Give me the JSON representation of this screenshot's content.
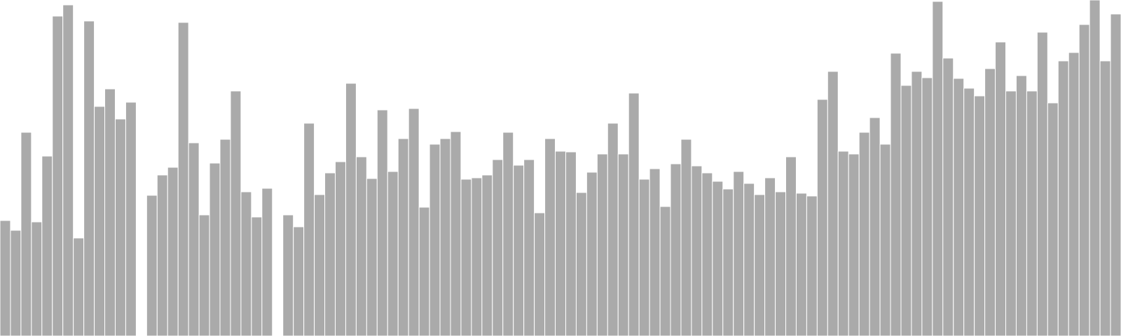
{
  "chart_data": {
    "type": "bar",
    "ylim": [
      0,
      480
    ],
    "grid": false,
    "legend": "none",
    "bar_color": "#aaaaaa",
    "bar_edge_color": "#ffffff",
    "background_color": "#ffffff",
    "values": [
      165,
      151,
      291,
      163,
      257,
      457,
      473,
      140,
      450,
      328,
      353,
      310,
      334,
      null,
      201,
      230,
      241,
      448,
      276,
      173,
      247,
      281,
      350,
      206,
      170,
      211,
      null,
      173,
      156,
      304,
      202,
      233,
      249,
      361,
      256,
      225,
      323,
      235,
      282,
      325,
      184,
      274,
      282,
      292,
      224,
      226,
      230,
      252,
      291,
      244,
      252,
      176,
      282,
      264,
      263,
      205,
      234,
      260,
      304,
      260,
      347,
      224,
      239,
      185,
      246,
      281,
      243,
      233,
      221,
      210,
      235,
      218,
      202,
      226,
      206,
      256,
      204,
      200,
      338,
      378,
      264,
      260,
      291,
      312,
      274,
      404,
      358,
      378,
      369,
      478,
      397,
      368,
      354,
      343,
      382,
      420,
      350,
      372,
      350,
      434,
      333,
      393,
      405,
      445,
      480,
      393,
      460
    ]
  }
}
